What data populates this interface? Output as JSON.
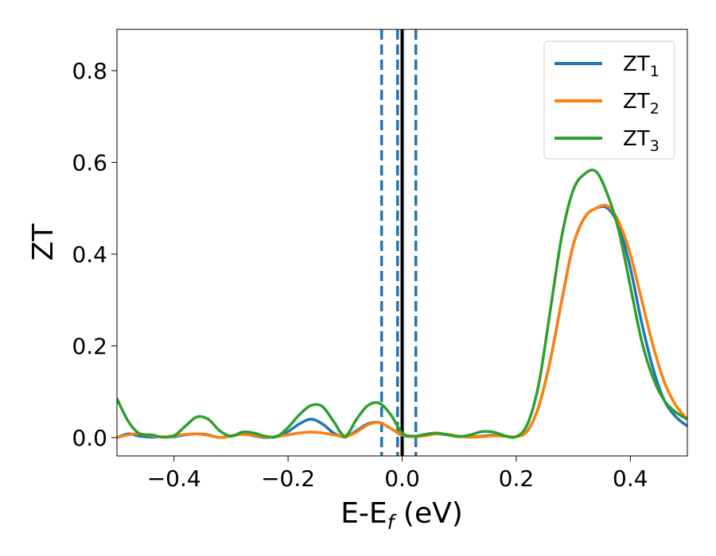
{
  "chart_data": {
    "type": "line",
    "xlabel": "E-E",
    "xlabel_sub": "f",
    "xlabel_unit": " (eV)",
    "ylabel": "ZT",
    "xlim": [
      -0.5,
      0.5
    ],
    "ylim": [
      -0.04,
      0.89
    ],
    "xticks": [
      -0.4,
      -0.2,
      0.0,
      0.2,
      0.4
    ],
    "xtick_labels": [
      "−0.4",
      "−0.2",
      "0.0",
      "0.2",
      "0.4"
    ],
    "yticks": [
      0.0,
      0.2,
      0.4,
      0.6,
      0.8
    ],
    "ytick_labels": [
      "0.0",
      "0.2",
      "0.4",
      "0.6",
      "0.8"
    ],
    "legend_position": "top-right",
    "vertical_lines": [
      {
        "x": -0.036,
        "style": "dashed",
        "color": "#1f77b4"
      },
      {
        "x": -0.008,
        "style": "dashed",
        "color": "#1f77b4"
      },
      {
        "x": 0.024,
        "style": "dashed",
        "color": "#1f77b4"
      },
      {
        "x": 0.0,
        "style": "solid",
        "color": "#000000"
      }
    ],
    "series": [
      {
        "name": "ZT",
        "name_sub": "1",
        "color": "#1f77b4",
        "x": [
          -0.5,
          -0.48,
          -0.46,
          -0.44,
          -0.42,
          -0.4,
          -0.38,
          -0.36,
          -0.34,
          -0.32,
          -0.3,
          -0.28,
          -0.26,
          -0.24,
          -0.22,
          -0.2,
          -0.18,
          -0.16,
          -0.14,
          -0.12,
          -0.1,
          -0.08,
          -0.06,
          -0.04,
          -0.02,
          0.0,
          0.02,
          0.04,
          0.06,
          0.08,
          0.1,
          0.12,
          0.14,
          0.16,
          0.18,
          0.2,
          0.22,
          0.24,
          0.26,
          0.28,
          0.3,
          0.32,
          0.34,
          0.36,
          0.38,
          0.4,
          0.42,
          0.44,
          0.46,
          0.48,
          0.5
        ],
        "y": [
          0.0,
          0.008,
          0.003,
          0.001,
          0.002,
          0.002,
          0.006,
          0.008,
          0.006,
          0.0,
          0.004,
          0.008,
          0.004,
          0.0,
          0.003,
          0.013,
          0.03,
          0.04,
          0.03,
          0.01,
          0.001,
          0.015,
          0.03,
          0.033,
          0.02,
          0.005,
          0.002,
          0.005,
          0.008,
          0.006,
          0.003,
          0.001,
          0.003,
          0.005,
          0.003,
          0.002,
          0.015,
          0.07,
          0.17,
          0.3,
          0.42,
          0.48,
          0.5,
          0.5,
          0.46,
          0.37,
          0.25,
          0.15,
          0.08,
          0.045,
          0.025
        ]
      },
      {
        "name": "ZT",
        "name_sub": "2",
        "color": "#ff7f0e",
        "x": [
          -0.5,
          -0.48,
          -0.46,
          -0.44,
          -0.42,
          -0.4,
          -0.38,
          -0.36,
          -0.34,
          -0.32,
          -0.3,
          -0.28,
          -0.26,
          -0.24,
          -0.22,
          -0.2,
          -0.18,
          -0.16,
          -0.14,
          -0.12,
          -0.1,
          -0.08,
          -0.06,
          -0.04,
          -0.02,
          0.0,
          0.02,
          0.04,
          0.06,
          0.08,
          0.1,
          0.12,
          0.14,
          0.16,
          0.18,
          0.2,
          0.22,
          0.24,
          0.26,
          0.28,
          0.3,
          0.32,
          0.34,
          0.36,
          0.38,
          0.4,
          0.42,
          0.44,
          0.46,
          0.48,
          0.5
        ],
        "y": [
          0.0,
          0.006,
          0.008,
          0.004,
          0.002,
          0.004,
          0.007,
          0.008,
          0.005,
          0.0,
          0.003,
          0.007,
          0.005,
          0.001,
          0.002,
          0.006,
          0.01,
          0.012,
          0.01,
          0.006,
          0.002,
          0.012,
          0.028,
          0.033,
          0.02,
          0.006,
          0.002,
          0.004,
          0.008,
          0.007,
          0.003,
          0.001,
          0.002,
          0.004,
          0.003,
          0.002,
          0.015,
          0.07,
          0.17,
          0.3,
          0.42,
          0.48,
          0.5,
          0.505,
          0.47,
          0.4,
          0.3,
          0.2,
          0.12,
          0.07,
          0.04
        ]
      },
      {
        "name": "ZT",
        "name_sub": "3",
        "color": "#2ca02c",
        "x": [
          -0.5,
          -0.48,
          -0.46,
          -0.44,
          -0.42,
          -0.4,
          -0.38,
          -0.36,
          -0.34,
          -0.32,
          -0.3,
          -0.28,
          -0.26,
          -0.24,
          -0.22,
          -0.2,
          -0.18,
          -0.16,
          -0.14,
          -0.12,
          -0.1,
          -0.08,
          -0.06,
          -0.04,
          -0.02,
          0.0,
          0.02,
          0.04,
          0.06,
          0.08,
          0.1,
          0.12,
          0.14,
          0.16,
          0.18,
          0.2,
          0.22,
          0.24,
          0.26,
          0.28,
          0.3,
          0.32,
          0.34,
          0.36,
          0.38,
          0.4,
          0.42,
          0.44,
          0.46,
          0.48,
          0.5
        ],
        "y": [
          0.085,
          0.035,
          0.008,
          0.006,
          0.001,
          0.004,
          0.025,
          0.045,
          0.04,
          0.015,
          0.003,
          0.012,
          0.01,
          0.003,
          0.002,
          0.022,
          0.05,
          0.07,
          0.068,
          0.035,
          0.003,
          0.04,
          0.07,
          0.075,
          0.05,
          0.01,
          0.003,
          0.007,
          0.01,
          0.006,
          0.002,
          0.006,
          0.013,
          0.012,
          0.004,
          0.002,
          0.03,
          0.12,
          0.28,
          0.44,
          0.54,
          0.575,
          0.58,
          0.53,
          0.45,
          0.33,
          0.21,
          0.13,
          0.08,
          0.055,
          0.04
        ]
      }
    ]
  }
}
